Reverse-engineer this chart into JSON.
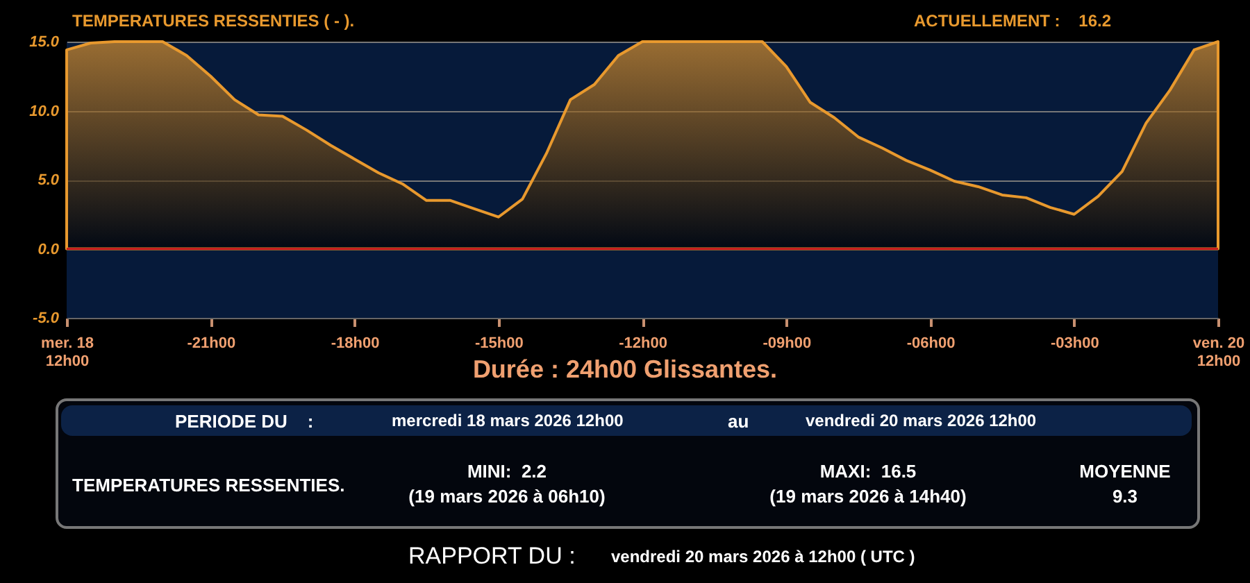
{
  "chart_data": {
    "type": "area",
    "title": "TEMPERATURES RESSENTIES ( - ).",
    "subtitle": "ACTUELLEMENT :    16.2",
    "xlabel": "Durée : 24h00 Glissantes.",
    "categories": [
      "mer. 18\n12h00",
      null,
      null,
      null,
      null,
      null,
      "-21h00",
      null,
      null,
      null,
      null,
      null,
      "-18h00",
      null,
      null,
      null,
      null,
      null,
      "-15h00",
      null,
      null,
      null,
      null,
      null,
      "-12h00",
      null,
      null,
      null,
      null,
      null,
      "-09h00",
      null,
      null,
      null,
      null,
      null,
      "-06h00",
      null,
      null,
      null,
      null,
      null,
      "-03h00",
      null,
      null,
      null,
      null,
      null,
      "ven. 20\n12h00"
    ],
    "series": [
      {
        "color": "#e8992e",
        "values": [
          14.4,
          14.9,
          15,
          15,
          15,
          14.0,
          12.5,
          10.8,
          9.7,
          9.6,
          8.6,
          7.5,
          6.5,
          5.5,
          4.7,
          3.5,
          3.5,
          2.9,
          2.3,
          3.6,
          6.9,
          10.8,
          11.9,
          14.0,
          15,
          15,
          15,
          15,
          15,
          15,
          13.2,
          10.6,
          9.5,
          8.1,
          7.3,
          6.4,
          5.7,
          4.9,
          4.5,
          3.9,
          3.7,
          3.0,
          2.5,
          3.8,
          5.6,
          9.1,
          11.5,
          14.4,
          15
        ]
      }
    ],
    "ylim": [
      -5,
      15
    ],
    "yticks": [
      {
        "value": -5,
        "label": "-5.0"
      },
      {
        "value": 0,
        "label": "0.0"
      },
      {
        "value": 5,
        "label": "5.0"
      },
      {
        "value": 10,
        "label": "10.0"
      },
      {
        "value": 15,
        "label": "15.0"
      }
    ],
    "grid": "y",
    "ref_lines": [
      {
        "axis": "y",
        "value": 0,
        "color": "#c81e1e"
      }
    ],
    "annotations": [
      "PERIODE DU    :",
      "mercredi 18 mars 2026 12h00",
      "au",
      "vendredi 20 mars 2026 12h00",
      "TEMPERATURES RESSENTIES.",
      "MINI:  2.2",
      "(19 mars 2026 à 06h10)",
      "MAXI:  16.5",
      "(19 mars 2026 à 14h40)",
      "MOYENNE",
      "9.3",
      "RAPPORT DU :",
      "vendredi 20 mars 2026 à 12h00 ( UTC )"
    ]
  }
}
